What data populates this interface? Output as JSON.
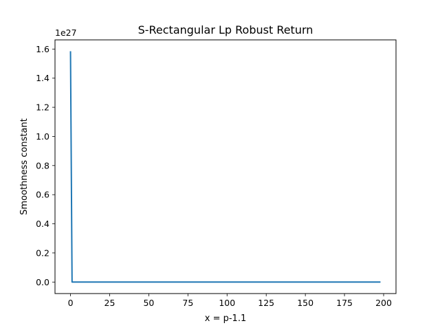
{
  "chart_data": {
    "type": "line",
    "title": "S-Rectangular Lp Robust Return",
    "xlabel": "x = p-1.1",
    "ylabel": "Smoothness constant",
    "y_offset_label": "1e27",
    "xlim": [
      -9.9,
      207.9
    ],
    "ylim": [
      -0.079,
      1.663
    ],
    "x_ticks": [
      0,
      25,
      50,
      75,
      100,
      125,
      150,
      175,
      200
    ],
    "x_tick_labels": [
      "0",
      "25",
      "50",
      "75",
      "100",
      "125",
      "150",
      "175",
      "200"
    ],
    "y_ticks": [
      0.0,
      0.2,
      0.4,
      0.6,
      0.8,
      1.0,
      1.2,
      1.4,
      1.6
    ],
    "y_tick_labels": [
      "0.0",
      "0.2",
      "0.4",
      "0.6",
      "0.8",
      "1.0",
      "1.2",
      "1.4",
      "1.6"
    ],
    "grid": false,
    "series": [
      {
        "color": "#1f77b4",
        "x": [
          0,
          1,
          2,
          10,
          50,
          100,
          150,
          198
        ],
        "y": [
          1.585,
          0.0,
          0.0,
          0.0,
          0.0,
          0.0,
          0.0,
          0.0
        ]
      }
    ]
  }
}
